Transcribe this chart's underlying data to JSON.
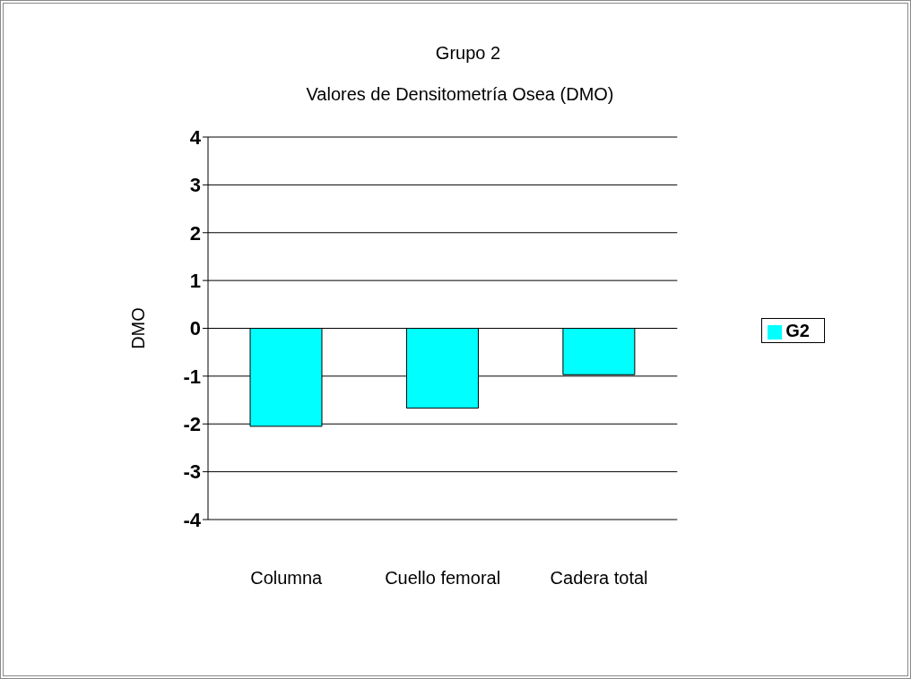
{
  "chart_data": {
    "type": "bar",
    "title": "Grupo 2",
    "subtitle": "Valores de Densitometría Osea (DMO)",
    "ylabel": "DMO",
    "categories": [
      "Columna",
      "Cuello femoral",
      "Cadera total"
    ],
    "series": [
      {
        "name": "G2",
        "color": "#00ffff",
        "values": [
          -2.05,
          -1.67,
          -0.97
        ]
      }
    ],
    "ylim": [
      -4,
      4
    ],
    "yticks": [
      -4,
      -3,
      -2,
      -1,
      0,
      1,
      2,
      3,
      4
    ],
    "grid": "y",
    "legend": "right"
  }
}
